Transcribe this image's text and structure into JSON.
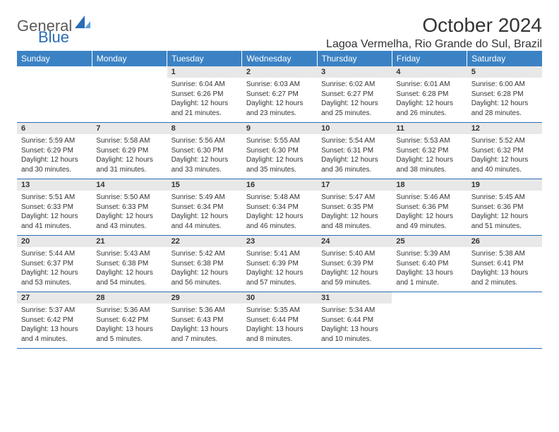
{
  "brand": {
    "part1": "General",
    "part2": "Blue"
  },
  "title": "October 2024",
  "location": "Lagoa Vermelha, Rio Grande do Sul, Brazil",
  "colors": {
    "header_bg": "#3b82c4",
    "header_text": "#ffffff",
    "daynum_bg": "#e8e8e8",
    "border": "#2a6db5",
    "brand_gray": "#5a5a5a",
    "brand_blue": "#2a6db5"
  },
  "day_headers": [
    "Sunday",
    "Monday",
    "Tuesday",
    "Wednesday",
    "Thursday",
    "Friday",
    "Saturday"
  ],
  "weeks": [
    [
      {
        "num": "",
        "sunrise": "",
        "sunset": "",
        "daylight": ""
      },
      {
        "num": "",
        "sunrise": "",
        "sunset": "",
        "daylight": ""
      },
      {
        "num": "1",
        "sunrise": "Sunrise: 6:04 AM",
        "sunset": "Sunset: 6:26 PM",
        "daylight": "Daylight: 12 hours and 21 minutes."
      },
      {
        "num": "2",
        "sunrise": "Sunrise: 6:03 AM",
        "sunset": "Sunset: 6:27 PM",
        "daylight": "Daylight: 12 hours and 23 minutes."
      },
      {
        "num": "3",
        "sunrise": "Sunrise: 6:02 AM",
        "sunset": "Sunset: 6:27 PM",
        "daylight": "Daylight: 12 hours and 25 minutes."
      },
      {
        "num": "4",
        "sunrise": "Sunrise: 6:01 AM",
        "sunset": "Sunset: 6:28 PM",
        "daylight": "Daylight: 12 hours and 26 minutes."
      },
      {
        "num": "5",
        "sunrise": "Sunrise: 6:00 AM",
        "sunset": "Sunset: 6:28 PM",
        "daylight": "Daylight: 12 hours and 28 minutes."
      }
    ],
    [
      {
        "num": "6",
        "sunrise": "Sunrise: 5:59 AM",
        "sunset": "Sunset: 6:29 PM",
        "daylight": "Daylight: 12 hours and 30 minutes."
      },
      {
        "num": "7",
        "sunrise": "Sunrise: 5:58 AM",
        "sunset": "Sunset: 6:29 PM",
        "daylight": "Daylight: 12 hours and 31 minutes."
      },
      {
        "num": "8",
        "sunrise": "Sunrise: 5:56 AM",
        "sunset": "Sunset: 6:30 PM",
        "daylight": "Daylight: 12 hours and 33 minutes."
      },
      {
        "num": "9",
        "sunrise": "Sunrise: 5:55 AM",
        "sunset": "Sunset: 6:30 PM",
        "daylight": "Daylight: 12 hours and 35 minutes."
      },
      {
        "num": "10",
        "sunrise": "Sunrise: 5:54 AM",
        "sunset": "Sunset: 6:31 PM",
        "daylight": "Daylight: 12 hours and 36 minutes."
      },
      {
        "num": "11",
        "sunrise": "Sunrise: 5:53 AM",
        "sunset": "Sunset: 6:32 PM",
        "daylight": "Daylight: 12 hours and 38 minutes."
      },
      {
        "num": "12",
        "sunrise": "Sunrise: 5:52 AM",
        "sunset": "Sunset: 6:32 PM",
        "daylight": "Daylight: 12 hours and 40 minutes."
      }
    ],
    [
      {
        "num": "13",
        "sunrise": "Sunrise: 5:51 AM",
        "sunset": "Sunset: 6:33 PM",
        "daylight": "Daylight: 12 hours and 41 minutes."
      },
      {
        "num": "14",
        "sunrise": "Sunrise: 5:50 AM",
        "sunset": "Sunset: 6:33 PM",
        "daylight": "Daylight: 12 hours and 43 minutes."
      },
      {
        "num": "15",
        "sunrise": "Sunrise: 5:49 AM",
        "sunset": "Sunset: 6:34 PM",
        "daylight": "Daylight: 12 hours and 44 minutes."
      },
      {
        "num": "16",
        "sunrise": "Sunrise: 5:48 AM",
        "sunset": "Sunset: 6:34 PM",
        "daylight": "Daylight: 12 hours and 46 minutes."
      },
      {
        "num": "17",
        "sunrise": "Sunrise: 5:47 AM",
        "sunset": "Sunset: 6:35 PM",
        "daylight": "Daylight: 12 hours and 48 minutes."
      },
      {
        "num": "18",
        "sunrise": "Sunrise: 5:46 AM",
        "sunset": "Sunset: 6:36 PM",
        "daylight": "Daylight: 12 hours and 49 minutes."
      },
      {
        "num": "19",
        "sunrise": "Sunrise: 5:45 AM",
        "sunset": "Sunset: 6:36 PM",
        "daylight": "Daylight: 12 hours and 51 minutes."
      }
    ],
    [
      {
        "num": "20",
        "sunrise": "Sunrise: 5:44 AM",
        "sunset": "Sunset: 6:37 PM",
        "daylight": "Daylight: 12 hours and 53 minutes."
      },
      {
        "num": "21",
        "sunrise": "Sunrise: 5:43 AM",
        "sunset": "Sunset: 6:38 PM",
        "daylight": "Daylight: 12 hours and 54 minutes."
      },
      {
        "num": "22",
        "sunrise": "Sunrise: 5:42 AM",
        "sunset": "Sunset: 6:38 PM",
        "daylight": "Daylight: 12 hours and 56 minutes."
      },
      {
        "num": "23",
        "sunrise": "Sunrise: 5:41 AM",
        "sunset": "Sunset: 6:39 PM",
        "daylight": "Daylight: 12 hours and 57 minutes."
      },
      {
        "num": "24",
        "sunrise": "Sunrise: 5:40 AM",
        "sunset": "Sunset: 6:39 PM",
        "daylight": "Daylight: 12 hours and 59 minutes."
      },
      {
        "num": "25",
        "sunrise": "Sunrise: 5:39 AM",
        "sunset": "Sunset: 6:40 PM",
        "daylight": "Daylight: 13 hours and 1 minute."
      },
      {
        "num": "26",
        "sunrise": "Sunrise: 5:38 AM",
        "sunset": "Sunset: 6:41 PM",
        "daylight": "Daylight: 13 hours and 2 minutes."
      }
    ],
    [
      {
        "num": "27",
        "sunrise": "Sunrise: 5:37 AM",
        "sunset": "Sunset: 6:42 PM",
        "daylight": "Daylight: 13 hours and 4 minutes."
      },
      {
        "num": "28",
        "sunrise": "Sunrise: 5:36 AM",
        "sunset": "Sunset: 6:42 PM",
        "daylight": "Daylight: 13 hours and 5 minutes."
      },
      {
        "num": "29",
        "sunrise": "Sunrise: 5:36 AM",
        "sunset": "Sunset: 6:43 PM",
        "daylight": "Daylight: 13 hours and 7 minutes."
      },
      {
        "num": "30",
        "sunrise": "Sunrise: 5:35 AM",
        "sunset": "Sunset: 6:44 PM",
        "daylight": "Daylight: 13 hours and 8 minutes."
      },
      {
        "num": "31",
        "sunrise": "Sunrise: 5:34 AM",
        "sunset": "Sunset: 6:44 PM",
        "daylight": "Daylight: 13 hours and 10 minutes."
      },
      {
        "num": "",
        "sunrise": "",
        "sunset": "",
        "daylight": ""
      },
      {
        "num": "",
        "sunrise": "",
        "sunset": "",
        "daylight": ""
      }
    ]
  ]
}
